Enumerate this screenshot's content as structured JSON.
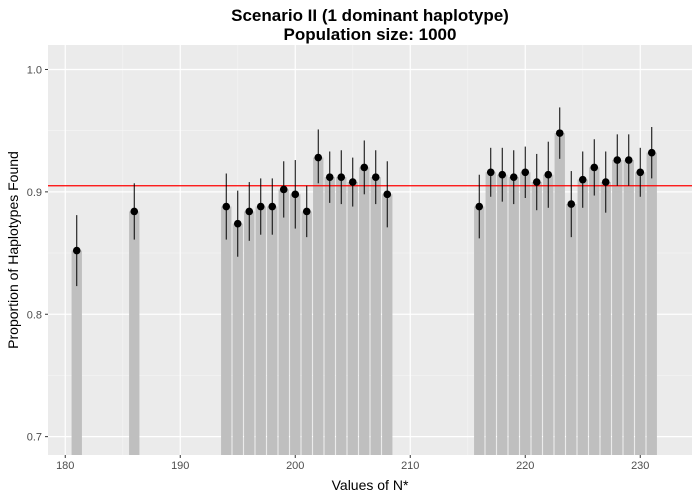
{
  "chart_data": {
    "type": "bar",
    "title_lines": [
      "Scenario II (1 dominant haplotype)",
      "Population size: 1000"
    ],
    "xlabel": "Values of N*",
    "ylabel": "Proportion of Haplotypes Found",
    "xlim": [
      178.5,
      234.5
    ],
    "ylim": [
      0.685,
      1.02
    ],
    "x_ticks": [
      180,
      190,
      200,
      210,
      220,
      230
    ],
    "y_ticks": [
      0.7,
      0.8,
      0.9,
      1.0
    ],
    "x_tick_labels": [
      "180",
      "190",
      "200",
      "210",
      "220",
      "230"
    ],
    "y_tick_labels": [
      "0.7",
      "0.8",
      "0.9",
      "1.0"
    ],
    "reference_line": {
      "value": 0.905,
      "color": "#ff0000"
    },
    "colors": {
      "panel": "#ebebeb",
      "grid_major": "#ffffff",
      "bar": "#bfbfbf",
      "point": "#000000"
    },
    "grid": true,
    "legend": "none",
    "points": [
      {
        "x": 181,
        "y": 0.852,
        "low": 0.823,
        "high": 0.881
      },
      {
        "x": 186,
        "y": 0.884,
        "low": 0.861,
        "high": 0.907
      },
      {
        "x": 194,
        "y": 0.888,
        "low": 0.861,
        "high": 0.915
      },
      {
        "x": 195,
        "y": 0.874,
        "low": 0.847,
        "high": 0.901
      },
      {
        "x": 196,
        "y": 0.884,
        "low": 0.86,
        "high": 0.908
      },
      {
        "x": 197,
        "y": 0.888,
        "low": 0.865,
        "high": 0.911
      },
      {
        "x": 198,
        "y": 0.888,
        "low": 0.865,
        "high": 0.911
      },
      {
        "x": 199,
        "y": 0.902,
        "low": 0.879,
        "high": 0.925
      },
      {
        "x": 200,
        "y": 0.898,
        "low": 0.87,
        "high": 0.926
      },
      {
        "x": 201,
        "y": 0.884,
        "low": 0.863,
        "high": 0.905
      },
      {
        "x": 202,
        "y": 0.928,
        "low": 0.907,
        "high": 0.951
      },
      {
        "x": 203,
        "y": 0.912,
        "low": 0.891,
        "high": 0.933
      },
      {
        "x": 204,
        "y": 0.912,
        "low": 0.89,
        "high": 0.934
      },
      {
        "x": 205,
        "y": 0.908,
        "low": 0.888,
        "high": 0.928
      },
      {
        "x": 206,
        "y": 0.92,
        "low": 0.898,
        "high": 0.942
      },
      {
        "x": 207,
        "y": 0.912,
        "low": 0.89,
        "high": 0.934
      },
      {
        "x": 208,
        "y": 0.898,
        "low": 0.871,
        "high": 0.925
      },
      {
        "x": 216,
        "y": 0.888,
        "low": 0.862,
        "high": 0.914
      },
      {
        "x": 217,
        "y": 0.916,
        "low": 0.896,
        "high": 0.936
      },
      {
        "x": 218,
        "y": 0.914,
        "low": 0.892,
        "high": 0.936
      },
      {
        "x": 219,
        "y": 0.912,
        "low": 0.89,
        "high": 0.934
      },
      {
        "x": 220,
        "y": 0.916,
        "low": 0.895,
        "high": 0.937
      },
      {
        "x": 221,
        "y": 0.908,
        "low": 0.885,
        "high": 0.931
      },
      {
        "x": 222,
        "y": 0.914,
        "low": 0.887,
        "high": 0.941
      },
      {
        "x": 223,
        "y": 0.948,
        "low": 0.927,
        "high": 0.969
      },
      {
        "x": 224,
        "y": 0.89,
        "low": 0.863,
        "high": 0.917
      },
      {
        "x": 225,
        "y": 0.91,
        "low": 0.887,
        "high": 0.933
      },
      {
        "x": 226,
        "y": 0.92,
        "low": 0.897,
        "high": 0.943
      },
      {
        "x": 227,
        "y": 0.908,
        "low": 0.883,
        "high": 0.933
      },
      {
        "x": 228,
        "y": 0.926,
        "low": 0.905,
        "high": 0.947
      },
      {
        "x": 229,
        "y": 0.926,
        "low": 0.905,
        "high": 0.947
      },
      {
        "x": 230,
        "y": 0.916,
        "low": 0.896,
        "high": 0.936
      },
      {
        "x": 231,
        "y": 0.932,
        "low": 0.911,
        "high": 0.953
      }
    ]
  }
}
